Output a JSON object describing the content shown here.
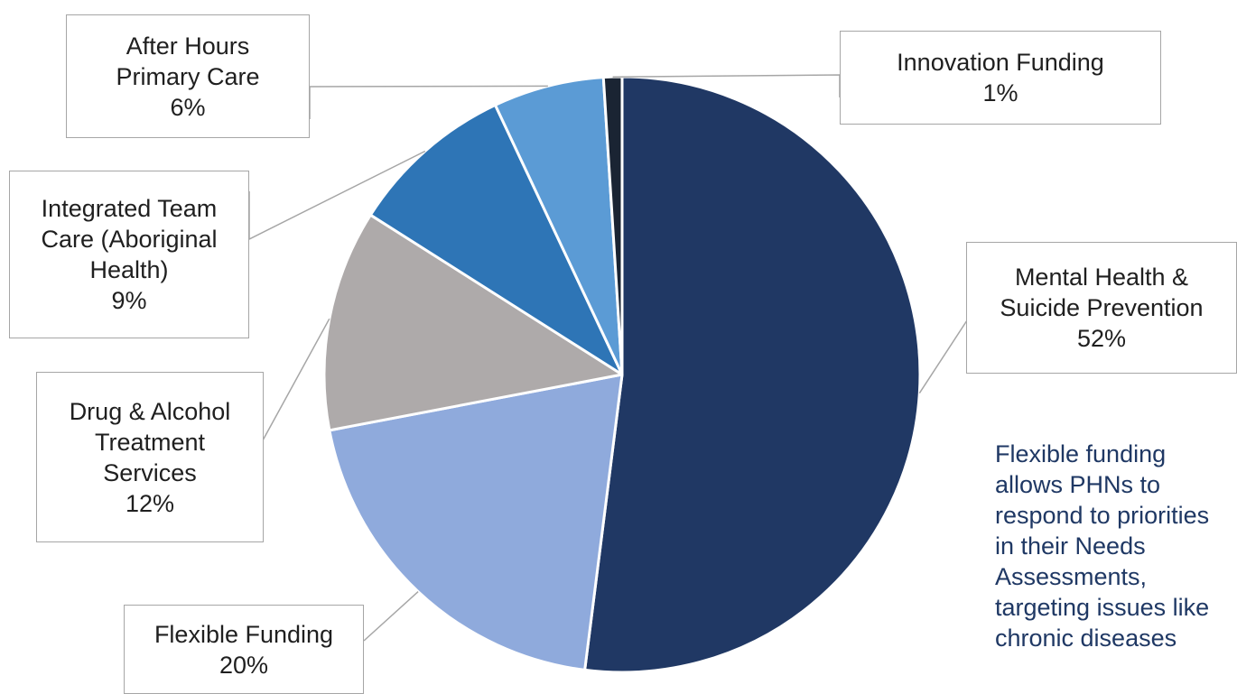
{
  "chart_data": {
    "type": "pie",
    "start_angle_deg": 0,
    "direction": "clockwise",
    "slices": [
      {
        "label": "Mental Health &\nSuicide Prevention",
        "value_label": "52%",
        "value": 52,
        "color": "#203864"
      },
      {
        "label": "Flexible Funding",
        "value_label": "20%",
        "value": 20,
        "color": "#8faadc"
      },
      {
        "label": "Drug & Alcohol\nTreatment\nServices",
        "value_label": "12%",
        "value": 12,
        "color": "#aeaaaa"
      },
      {
        "label": "Integrated Team\nCare (Aboriginal\nHealth)",
        "value_label": "9%",
        "value": 9,
        "color": "#2e75b6"
      },
      {
        "label": "After Hours\nPrimary Care",
        "value_label": "6%",
        "value": 6,
        "color": "#5b9bd5"
      },
      {
        "label": "Innovation Funding",
        "value_label": "1%",
        "value": 1,
        "color": "#1a2433"
      }
    ]
  },
  "note": {
    "lines": [
      "Flexible funding",
      "allows PHNs to",
      "respond to priorities",
      "in their Needs",
      "Assessments,",
      "targeting issues like",
      "chronic diseases"
    ],
    "color": "#1f3864"
  }
}
